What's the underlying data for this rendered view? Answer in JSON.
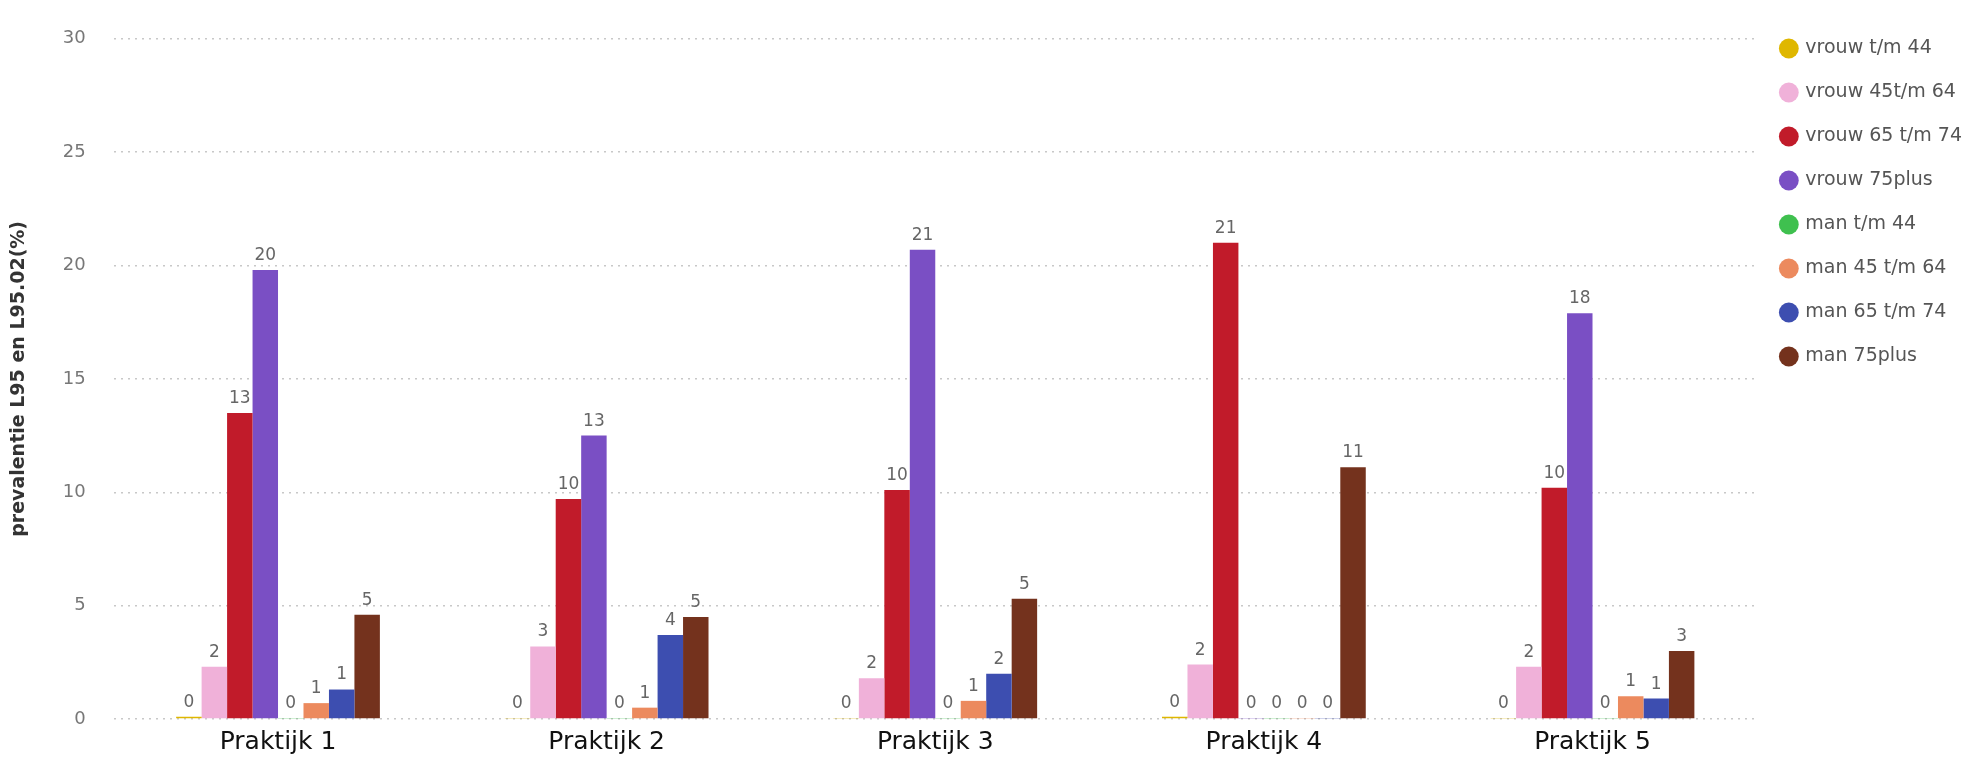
{
  "chart_data": {
    "type": "bar",
    "ylabel": "prevalentie L95 en L95.02(%)",
    "categories": [
      "Praktijk 1",
      "Praktijk 2",
      "Praktijk 3",
      "Praktijk 4",
      "Praktijk 5"
    ],
    "ylim": [
      0,
      30
    ],
    "yticks": [
      0,
      5,
      10,
      15,
      20,
      25,
      30
    ],
    "grid": "y",
    "legend": "top right",
    "series": [
      {
        "name": "vrouw t/m 44",
        "color": "#dfb700",
        "values": [
          0.1,
          0,
          0,
          0.1,
          0
        ],
        "value_labels": [
          "0",
          "0",
          "0",
          "0",
          "0"
        ]
      },
      {
        "name": "vrouw 45t/m 64",
        "color": "#f0b1d9",
        "values": [
          2.3,
          3.2,
          1.8,
          2.4,
          2.3
        ],
        "value_labels": [
          "2",
          "3",
          "2",
          "2",
          "2"
        ]
      },
      {
        "name": "vrouw 65 t/m 74",
        "color": "#c11b2a",
        "values": [
          13.5,
          9.7,
          10.1,
          21.0,
          10.2
        ],
        "value_labels": [
          "13",
          "10",
          "10",
          "21",
          "10"
        ]
      },
      {
        "name": "vrouw 75plus",
        "color": "#7a4fc4",
        "values": [
          19.8,
          12.5,
          20.7,
          0,
          17.9
        ],
        "value_labels": [
          "20",
          "13",
          "21",
          "0",
          "18"
        ]
      },
      {
        "name": "man t/m 44",
        "color": "#3fc04f",
        "values": [
          0,
          0,
          0,
          0,
          0
        ],
        "value_labels": [
          "0",
          "0",
          "0",
          "0",
          "0"
        ]
      },
      {
        "name": "man 45 t/m 64",
        "color": "#ec8a5e",
        "values": [
          0.7,
          0.5,
          0.8,
          0,
          1.0
        ],
        "value_labels": [
          "1",
          "1",
          "1",
          "0",
          "1"
        ]
      },
      {
        "name": "man 65 t/m 74",
        "color": "#3d4eb0",
        "values": [
          1.3,
          3.7,
          2.0,
          0,
          0.9
        ],
        "value_labels": [
          "1",
          "4",
          "2",
          "0",
          "1"
        ]
      },
      {
        "name": "man 75plus",
        "color": "#74321d",
        "values": [
          4.6,
          4.5,
          5.3,
          11.1,
          3.0
        ],
        "value_labels": [
          "5",
          "5",
          "5",
          "11",
          "3"
        ]
      }
    ]
  }
}
